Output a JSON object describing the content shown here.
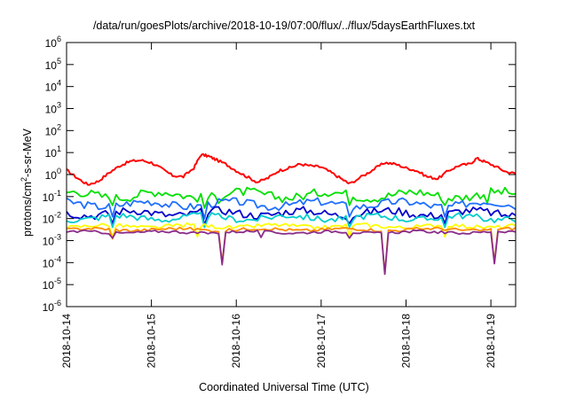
{
  "chart_data": {
    "type": "line",
    "title": "/data/run/goesPlots/archive/2018-10-19/07:00/flux/../flux/5daysEarthFluxes.txt",
    "xlabel": "Coordinated Universal Time (UTC)",
    "ylabel": {
      "prefix": "protons/cm",
      "sup": "2",
      "suffix": "-s-sr-MeV"
    },
    "y_scale": "log",
    "ylim": [
      1e-06,
      1000000.0
    ],
    "y_ticks": [
      {
        "value": 1000000.0,
        "base": "10",
        "exp": "6"
      },
      {
        "value": 100000.0,
        "base": "10",
        "exp": "5"
      },
      {
        "value": 10000.0,
        "base": "10",
        "exp": "4"
      },
      {
        "value": 1000.0,
        "base": "10",
        "exp": "3"
      },
      {
        "value": 100.0,
        "base": "10",
        "exp": "2"
      },
      {
        "value": 10.0,
        "base": "10",
        "exp": "1"
      },
      {
        "value": 1,
        "base": "10",
        "exp": "0"
      },
      {
        "value": 0.1,
        "base": "10",
        "exp": "-1"
      },
      {
        "value": 0.01,
        "base": "10",
        "exp": "-2"
      },
      {
        "value": 0.001,
        "base": "10",
        "exp": "-3"
      },
      {
        "value": 0.0001,
        "base": "10",
        "exp": "-4"
      },
      {
        "value": 1e-05,
        "base": "10",
        "exp": "-5"
      },
      {
        "value": 1e-06,
        "base": "10",
        "exp": "-6"
      }
    ],
    "x_ticks": [
      "2018-10-14",
      "2018-10-15",
      "2018-10-16",
      "2018-10-17",
      "2018-10-18",
      "2018-10-19"
    ],
    "xlim": [
      "2018-10-14 00:00",
      "2018-10-19 07:00"
    ],
    "grid": false,
    "legend": "none",
    "series": [
      {
        "color": "#ff0000",
        "points": [
          [
            "2018-10-14 00:00",
            1.6
          ],
          [
            "2018-10-14 03:00",
            0.7
          ],
          [
            "2018-10-14 06:00",
            0.35
          ],
          [
            "2018-10-14 09:00",
            0.5
          ],
          [
            "2018-10-14 12:00",
            1.2
          ],
          [
            "2018-10-14 15:00",
            2.5
          ],
          [
            "2018-10-14 18:00",
            4.0
          ],
          [
            "2018-10-14 21:00",
            4.5
          ],
          [
            "2018-10-15 00:00",
            3.5
          ],
          [
            "2018-10-15 03:00",
            1.8
          ],
          [
            "2018-10-15 06:00",
            0.9
          ],
          [
            "2018-10-15 09:00",
            0.8
          ],
          [
            "2018-10-15 12:00",
            2.0
          ],
          [
            "2018-10-15 14:00",
            8.0
          ],
          [
            "2018-10-15 16:00",
            7.0
          ],
          [
            "2018-10-15 18:00",
            5.0
          ],
          [
            "2018-10-15 21:00",
            3.0
          ],
          [
            "2018-10-16 00:00",
            1.5
          ],
          [
            "2018-10-16 03:00",
            0.8
          ],
          [
            "2018-10-16 06:00",
            0.45
          ],
          [
            "2018-10-16 09:00",
            0.7
          ],
          [
            "2018-10-16 12:00",
            1.5
          ],
          [
            "2018-10-16 15:00",
            2.0
          ],
          [
            "2018-10-16 18:00",
            3.0
          ],
          [
            "2018-10-16 21:00",
            2.5
          ],
          [
            "2018-10-17 00:00",
            2.2
          ],
          [
            "2018-10-17 03:00",
            1.2
          ],
          [
            "2018-10-17 06:00",
            0.6
          ],
          [
            "2018-10-17 08:00",
            0.38
          ],
          [
            "2018-10-17 12:00",
            0.9
          ],
          [
            "2018-10-17 15:00",
            1.8
          ],
          [
            "2018-10-17 18:00",
            3.5
          ],
          [
            "2018-10-17 21:00",
            3.0
          ],
          [
            "2018-10-18 00:00",
            2.0
          ],
          [
            "2018-10-18 03:00",
            1.5
          ],
          [
            "2018-10-18 06:00",
            0.8
          ],
          [
            "2018-10-18 09:00",
            0.65
          ],
          [
            "2018-10-18 12:00",
            1.5
          ],
          [
            "2018-10-18 15:00",
            2.6
          ],
          [
            "2018-10-18 18:00",
            3.0
          ],
          [
            "2018-10-18 20:00",
            5.5
          ],
          [
            "2018-10-18 22:00",
            4.0
          ],
          [
            "2018-10-19 01:00",
            2.5
          ],
          [
            "2018-10-19 04:00",
            1.4
          ],
          [
            "2018-10-19 07:00",
            1.1
          ]
        ]
      },
      {
        "color": "#00e000",
        "baseline": 0.12,
        "variation": 0.35,
        "dips": [
          [
            "2018-10-14 13:00",
            0.04
          ],
          [
            "2018-10-15 15:00",
            0.03
          ],
          [
            "2018-10-15 19:00",
            0.05
          ],
          [
            "2018-10-17 08:00",
            0.04
          ],
          [
            "2018-10-18 11:00",
            0.04
          ],
          [
            "2018-10-18 23:00",
            0.05
          ]
        ]
      },
      {
        "color": "#1f6fff",
        "baseline": 0.045,
        "variation": 0.3,
        "dips": [
          [
            "2018-10-14 13:00",
            0.012
          ],
          [
            "2018-10-15 15:00",
            0.01
          ],
          [
            "2018-10-17 08:00",
            0.012
          ],
          [
            "2018-10-18 11:00",
            0.012
          ]
        ]
      },
      {
        "color": "#0000cc",
        "baseline": 0.018,
        "variation": 0.3,
        "dips": [
          [
            "2018-10-14 13:00",
            0.006
          ],
          [
            "2018-10-15 15:00",
            0.005
          ],
          [
            "2018-10-17 08:00",
            0.006
          ],
          [
            "2018-10-18 11:00",
            0.006
          ]
        ]
      },
      {
        "color": "#00cccc",
        "baseline": 0.011,
        "variation": 0.25,
        "dips": [
          [
            "2018-10-14 13:00",
            0.004
          ],
          [
            "2018-10-15 15:00",
            0.004
          ],
          [
            "2018-10-17 08:00",
            0.004
          ],
          [
            "2018-10-18 11:00",
            0.004
          ]
        ]
      },
      {
        "color": "#ffff00",
        "baseline": 0.0045,
        "variation": 0.15,
        "dips": [
          [
            "2018-10-14 13:00",
            0.0015
          ],
          [
            "2018-10-15 13:00",
            0.0015
          ],
          [
            "2018-10-17 08:00",
            0.0015
          ],
          [
            "2018-10-18 11:00",
            0.0015
          ]
        ]
      },
      {
        "color": "#ff8c00",
        "baseline": 0.0032,
        "variation": 0.12,
        "dips": [
          [
            "2018-10-14 13:00",
            0.0012
          ],
          [
            "2018-10-15 20:00",
            0.0001
          ],
          [
            "2018-10-17 18:00",
            3e-05
          ],
          [
            "2018-10-19 01:00",
            0.0001
          ]
        ]
      },
      {
        "color": "#8a2c8a",
        "baseline": 0.0024,
        "variation": 0.1,
        "dips": [
          [
            "2018-10-14 13:00",
            0.0013
          ],
          [
            "2018-10-15 20:00",
            8e-05
          ],
          [
            "2018-10-16 07:00",
            0.0014
          ],
          [
            "2018-10-17 08:00",
            0.0013
          ],
          [
            "2018-10-17 18:00",
            3e-05
          ],
          [
            "2018-10-19 01:00",
            9e-05
          ]
        ]
      }
    ]
  }
}
